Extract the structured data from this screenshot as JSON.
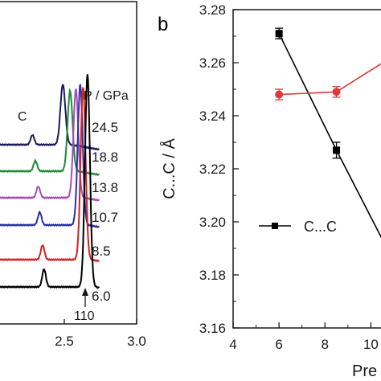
{
  "chart_data": [
    {
      "type": "line",
      "panel": "",
      "xlim": [
        2.0,
        3.0
      ],
      "x_ticks": [
        "2.5",
        "3.0"
      ],
      "legend_title": "P / GPa",
      "peak_labels": {
        "c_label": "C",
        "peak_110": "110"
      },
      "series": [
        {
          "pressure": "24.5",
          "color": "#1a1a5e",
          "peaks": [
            {
              "x": 2.28,
              "h": 12
            },
            {
              "x": 2.49,
              "h": 75
            }
          ]
        },
        {
          "pressure": "18.8",
          "color": "#1f8a3a",
          "peaks": [
            {
              "x": 2.3,
              "h": 13
            },
            {
              "x": 2.54,
              "h": 100
            }
          ]
        },
        {
          "pressure": "13.8",
          "color": "#a64db3",
          "peaks": [
            {
              "x": 2.32,
              "h": 14
            },
            {
              "x": 2.58,
              "h": 135
            }
          ]
        },
        {
          "pressure": "10.7",
          "color": "#2b2fa8",
          "peaks": [
            {
              "x": 2.33,
              "h": 16
            },
            {
              "x": 2.61,
              "h": 175
            }
          ]
        },
        {
          "pressure": "8.5",
          "color": "#d42020",
          "peaks": [
            {
              "x": 2.35,
              "h": 18
            },
            {
              "x": 2.63,
              "h": 215
            }
          ]
        },
        {
          "pressure": "6.0",
          "color": "#000000",
          "peaks": [
            {
              "x": 2.36,
              "h": 22
            },
            {
              "x": 2.66,
              "h": 265
            }
          ]
        }
      ]
    },
    {
      "type": "line",
      "panel": "b",
      "xlabel": "Pre",
      "ylabel": "C...C / Å",
      "xlim": [
        4,
        11
      ],
      "ylim": [
        3.16,
        3.28
      ],
      "x_ticks": [
        4,
        6,
        8,
        10
      ],
      "y_ticks": [
        "3.16",
        "3.18",
        "3.20",
        "3.22",
        "3.24",
        "3.26",
        "3.28"
      ],
      "legend": {
        "label": "C...C"
      },
      "series": [
        {
          "name": "C...C",
          "color": "#000000",
          "marker": "square",
          "points": [
            {
              "x": 6.0,
              "y": 3.271,
              "err": 0.002
            },
            {
              "x": 8.5,
              "y": 3.227,
              "err": 0.003
            }
          ],
          "extends_to": {
            "x": 10.7,
            "y": 3.19
          }
        },
        {
          "name": "",
          "color": "#d83c3c",
          "marker": "circle",
          "points": [
            {
              "x": 6.0,
              "y": 3.248,
              "err": 0.002
            },
            {
              "x": 8.5,
              "y": 3.249,
              "err": 0.002
            }
          ],
          "extends_to": {
            "x": 10.7,
            "y": 3.261
          }
        }
      ]
    }
  ]
}
